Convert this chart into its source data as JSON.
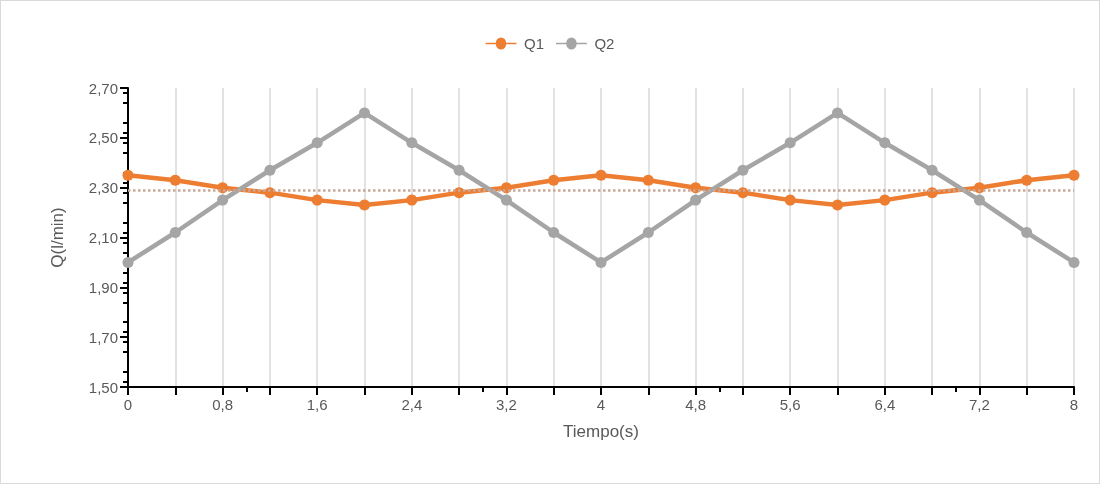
{
  "chart_data": {
    "type": "line",
    "xlabel": "Tiempo(s)",
    "ylabel": "Q(l/min)",
    "x": [
      0,
      0.4,
      0.8,
      1.2,
      1.6,
      2.0,
      2.4,
      2.8,
      3.2,
      3.6,
      4.0,
      4.4,
      4.8,
      5.2,
      5.6,
      6.0,
      6.4,
      6.8,
      7.2,
      7.6,
      8.0
    ],
    "series": [
      {
        "name": "Q1",
        "color": "#ed7d31",
        "values": [
          2.35,
          2.33,
          2.3,
          2.28,
          2.25,
          2.23,
          2.25,
          2.28,
          2.3,
          2.33,
          2.35,
          2.33,
          2.3,
          2.28,
          2.25,
          2.23,
          2.25,
          2.28,
          2.3,
          2.33,
          2.35
        ]
      },
      {
        "name": "Q2",
        "color": "#a5a5a5",
        "values": [
          2.0,
          2.12,
          2.25,
          2.37,
          2.48,
          2.6,
          2.48,
          2.37,
          2.25,
          2.12,
          2.0,
          2.12,
          2.25,
          2.37,
          2.48,
          2.6,
          2.48,
          2.37,
          2.25,
          2.12,
          2.0
        ]
      }
    ],
    "xlim": [
      0,
      8
    ],
    "xticks": [
      {
        "value": 0,
        "label": "0"
      },
      {
        "value": 0.4,
        "label": null
      },
      {
        "value": 0.8,
        "label": "0,8"
      },
      {
        "value": 1.2,
        "label": null
      },
      {
        "value": 1.6,
        "label": "1,6"
      },
      {
        "value": 2.0,
        "label": null
      },
      {
        "value": 2.4,
        "label": "2,4"
      },
      {
        "value": 2.8,
        "label": null
      },
      {
        "value": 3.2,
        "label": "3,2"
      },
      {
        "value": 3.6,
        "label": null
      },
      {
        "value": 4,
        "label": "4"
      },
      {
        "value": 4.4,
        "label": null
      },
      {
        "value": 4.8,
        "label": "4,8"
      },
      {
        "value": 5.2,
        "label": null
      },
      {
        "value": 5.6,
        "label": "5,6"
      },
      {
        "value": 6.0,
        "label": null
      },
      {
        "value": 6.4,
        "label": "6,4"
      },
      {
        "value": 6.8,
        "label": null
      },
      {
        "value": 7.2,
        "label": "7,2"
      },
      {
        "value": 7.6,
        "label": null
      },
      {
        "value": 8,
        "label": "8"
      }
    ],
    "ylim": [
      1.5,
      2.7
    ],
    "yticks": [
      {
        "value": 1.5,
        "label": "1,50"
      },
      {
        "value": 1.7,
        "label": "1,70"
      },
      {
        "value": 1.9,
        "label": "1,90"
      },
      {
        "value": 2.1,
        "label": "2,10"
      },
      {
        "value": 2.3,
        "label": "2,30"
      },
      {
        "value": 2.5,
        "label": "2,50"
      },
      {
        "value": 2.7,
        "label": "2,70"
      }
    ],
    "ref_lines": [
      {
        "axis": "y",
        "value": 2.29,
        "label": null,
        "color": "#c8a898",
        "line_style": "dotted"
      }
    ],
    "grid": "x",
    "legend": "top",
    "marker": "circle",
    "line_style": "solid"
  }
}
